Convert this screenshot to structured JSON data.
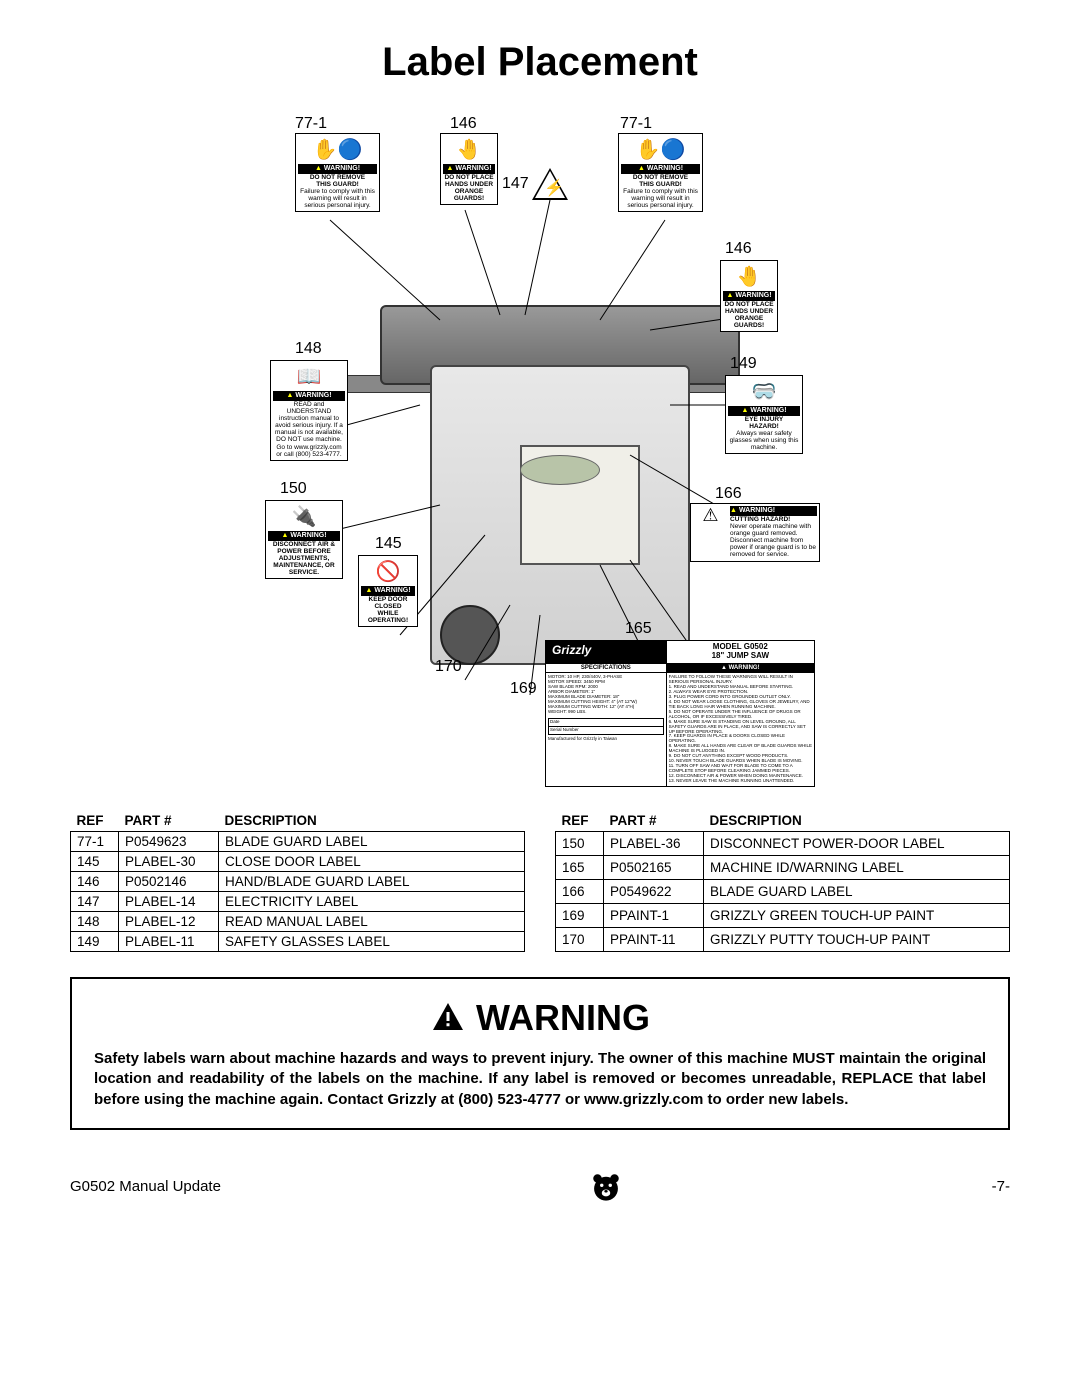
{
  "page_title": "Label Placement",
  "footer_left": "G0502 Manual Update",
  "footer_right": "-7-",
  "warning_block": {
    "heading": "WARNING",
    "body": "Safety labels warn about machine hazards and ways to prevent injury. The owner of this machine MUST maintain the original location and readability of the labels on the machine. If any label is removed or becomes unreadable, REPLACE that label before using the machine again. Contact Grizzly at (800) 523-4777 or www.grizzly.com to order new labels."
  },
  "table_headers": {
    "ref": "REF",
    "part": "PART #",
    "desc": "DESCRIPTION"
  },
  "table_left": [
    {
      "ref": "77-1",
      "part": "P0549623",
      "desc": "BLADE GUARD LABEL"
    },
    {
      "ref": "145",
      "part": "PLABEL-30",
      "desc": "CLOSE DOOR LABEL"
    },
    {
      "ref": "146",
      "part": "P0502146",
      "desc": "HAND/BLADE GUARD LABEL"
    },
    {
      "ref": "147",
      "part": "PLABEL-14",
      "desc": "ELECTRICITY LABEL"
    },
    {
      "ref": "148",
      "part": "PLABEL-12",
      "desc": "READ MANUAL LABEL"
    },
    {
      "ref": "149",
      "part": "PLABEL-11",
      "desc": "SAFETY GLASSES LABEL"
    }
  ],
  "table_right": [
    {
      "ref": "150",
      "part": "PLABEL-36",
      "desc": "DISCONNECT POWER-DOOR LABEL"
    },
    {
      "ref": "165",
      "part": "P0502165",
      "desc": "MACHINE ID/WARNING LABEL"
    },
    {
      "ref": "166",
      "part": "P0549622",
      "desc": "BLADE GUARD LABEL"
    },
    {
      "ref": "169",
      "part": "PPAINT-1",
      "desc": "GRIZZLY GREEN TOUCH-UP PAINT"
    },
    {
      "ref": "170",
      "part": "PPAINT-11",
      "desc": "GRIZZLY PUTTY TOUCH-UP PAINT"
    }
  ],
  "callouts": {
    "c77_1a": "77-1",
    "c77_1b": "77-1",
    "c145": "145",
    "c146a": "146",
    "c146b": "146",
    "c147": "147",
    "c148": "148",
    "c149": "149",
    "c150": "150",
    "c165": "165",
    "c166": "166",
    "c169": "169",
    "c170": "170"
  },
  "mini_labels": {
    "warning_bar": "WARNING!",
    "l77": {
      "t1": "DO NOT REMOVE",
      "t2": "THIS GUARD!",
      "t3": "Failure to comply with this warning will result in serious personal injury."
    },
    "l146": {
      "t1": "DO NOT PLACE",
      "t2": "HANDS UNDER ORANGE GUARDS!"
    },
    "l148": {
      "t1": "READ and UNDERSTAND instruction manual to avoid serious injury. If a manual is not available, DO NOT use machine. Go to www.grizzly.com or call (800) 523-4777."
    },
    "l149": {
      "t1": "EYE INJURY",
      "t2": "HAZARD!",
      "t3": "Always wear safety glasses when using this machine."
    },
    "l150": {
      "t1": "DISCONNECT AIR & POWER BEFORE ADJUSTMENTS, MAINTENANCE, OR SERVICE."
    },
    "l145": {
      "t1": "KEEP DOOR",
      "t2": "CLOSED",
      "t3": "WHILE",
      "t4": "OPERATING!"
    },
    "l166": {
      "t1": "CUTTING HAZARD!",
      "t2": "Never operate machine with orange guard removed. Disconnect machine from power if orange guard is to be removed for service."
    }
  },
  "spec_plate": {
    "logo": "Grizzly",
    "model_line1": "MODEL G0502",
    "model_line2": "18\" JUMP SAW",
    "spec_hdr": "SPECIFICATIONS",
    "warn_hdr": "WARNING!",
    "specs": "MOTOR: 10 HP, 230/440V, 3-PHASE\nMOTOR SPEED: 3450 RPM\nSAW BLADE RPM: 2000\nARBOR DIAMETER: 1\"\nMAXIMUM BLADE DIAMETER: 18\"\nMAXIMUM CUTTING HEIGHT: 4\" (AT 12\"W)\nMAXIMUM CUTTING WIDTH: 12\" (AT 4\"H)\nWEIGHT: 990 LBS.",
    "warnings": "FAILURE TO FOLLOW THESE WARNINGS WILL RESULT IN SERIOUS PERSONAL INJURY.\n1. READ AND UNDERSTAND MANUAL BEFORE STARTING.\n2. ALWAYS WEAR EYE PROTECTION.\n3. PLUG POWER CORD INTO GROUNDED OUTLET ONLY.\n4. DO NOT WEAR LOOSE CLOTHING, GLOVES OR JEWELRY, AND TIE BACK LONG HAIR WHEN RUNNING MACHINE.\n5. DO NOT OPERATE UNDER THE INFLUENCE OF DRUGS OR ALCOHOL, OR IF EXCESSIVELY TIRED.\n6. MAKE SURE SAW IS STANDING ON LEVEL GROUND, ALL SAFETY GUARDS ARE IN PLACE, AND SAW IS CORRECTLY SET UP BEFORE OPERATING.\n7. KEEP GUARDS IN PLACE & DOORS CLOSED WHILE OPERATING.\n8. MAKE SURE ALL HANDS ARE CLEAR OF BLADE GUARDS WHILE MACHINE IS PLUGGED IN.\n9. DO NOT CUT ANYTHING EXCEPT WOOD PRODUCTS.\n10. NEVER TOUCH BLADE GUARDS WHEN BLADE IS MOVING.\n11. TURN OFF SAW AND WAIT FOR BLADE TO COME TO A COMPLETE STOP BEFORE CLEARING JAMMED PIECES.\n12. DISCONNECT AIR & POWER WHEN DOING MAINTENANCE.\n13. NEVER LEAVE THE MACHINE RUNNING UNATTENDED.",
    "mfr": "Manufactured for Grizzly in Taiwan",
    "date": "Date",
    "serial": "Serial Number"
  }
}
